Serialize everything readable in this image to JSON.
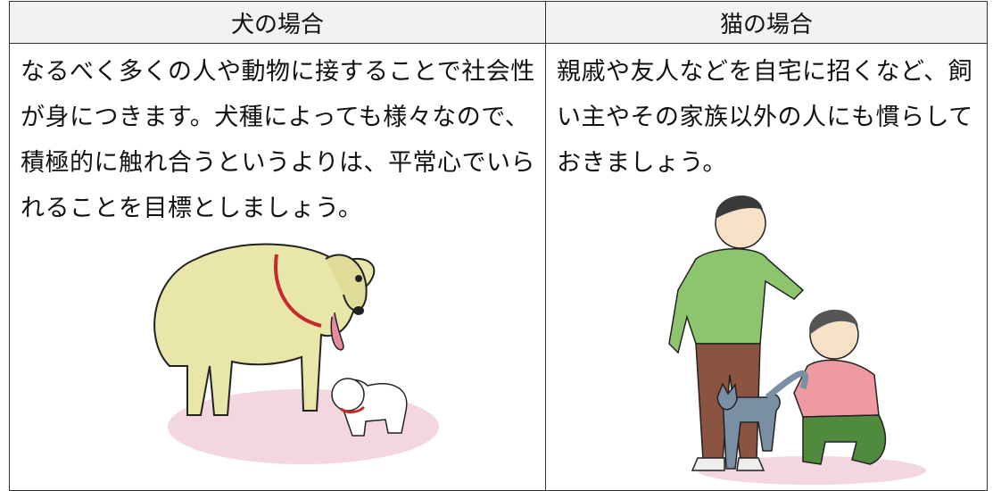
{
  "table": {
    "headers": [
      "犬の場合",
      "猫の場合"
    ],
    "rows": [
      [
        "なるべく多くの人や動物に接することで社会性が身につきます。犬種によっても様々なので、積極的に触れ合うというよりは、平常心でいられることを目標としましょう。",
        "親戚や友人などを自宅に招くなど、飼い主やその家族以外の人にも慣らしておきましょう。"
      ]
    ]
  }
}
